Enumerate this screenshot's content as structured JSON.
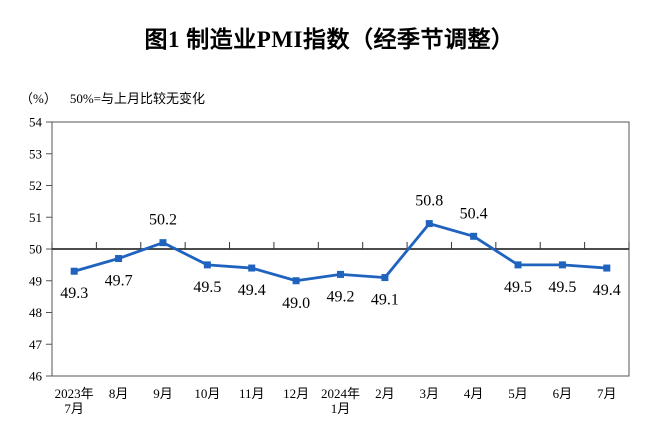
{
  "chart_data": {
    "type": "line",
    "title": "图1 制造业PMI指数（经季节调整）",
    "unit_label": "（%）",
    "reference_note": "50%=与上月比较无变化",
    "categories": [
      "2023年\n7月",
      "8月",
      "9月",
      "10月",
      "11月",
      "12月",
      "2024年\n1月",
      "2月",
      "3月",
      "4月",
      "5月",
      "6月",
      "7月"
    ],
    "values": [
      49.3,
      49.7,
      50.2,
      49.5,
      49.4,
      49.0,
      49.2,
      49.1,
      50.8,
      50.4,
      49.5,
      49.5,
      49.4
    ],
    "data_label_positions": [
      "below",
      "below",
      "above",
      "below",
      "below",
      "below",
      "below",
      "below",
      "above",
      "above",
      "below",
      "below",
      "below"
    ],
    "ylim": [
      46,
      54
    ],
    "ytick_step": 1,
    "yticks": [
      46,
      47,
      48,
      49,
      50,
      51,
      52,
      53,
      54
    ],
    "reference_line_y": 50,
    "grid": false,
    "legend": "none",
    "line_color": "#1F63BE",
    "marker": "square",
    "marker_color": "#1F63BE",
    "axis_color": "#555555",
    "reference_line_color": "#333333",
    "text_color": "#000000"
  }
}
